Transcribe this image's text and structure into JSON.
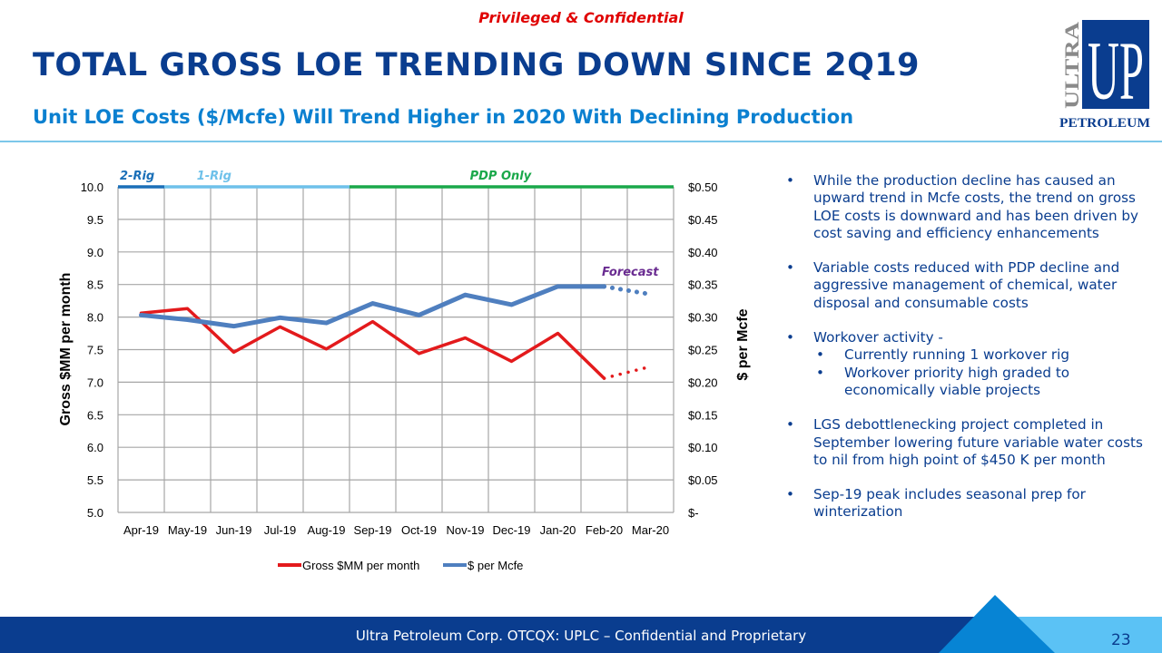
{
  "header": {
    "confidential_label": "Privileged & Confidential",
    "title": "TOTAL GROSS LOE TRENDING DOWN SINCE 2Q19",
    "subtitle": "Unit LOE Costs ($/Mcfe) Will Trend Higher in 2020 With Declining Production"
  },
  "logo": {
    "side_text": "ULTRA",
    "main_text": "UP",
    "bottom_text": "PETROLEUM",
    "colors": {
      "navy": "#0a3d8f",
      "gray": "#8a8a8a"
    }
  },
  "chart_data": {
    "type": "line",
    "categories": [
      "Apr-19",
      "May-19",
      "Jun-19",
      "Jul-19",
      "Aug-19",
      "Sep-19",
      "Oct-19",
      "Nov-19",
      "Dec-19",
      "Jan-20",
      "Feb-20",
      "Mar-20"
    ],
    "series": [
      {
        "name": "Gross $MM per month",
        "axis": "left",
        "color": "#e31a1c",
        "values": [
          8.06,
          8.13,
          7.46,
          7.85,
          7.51,
          7.93,
          7.44,
          7.68,
          7.32,
          7.75,
          7.06,
          null
        ],
        "forecast": {
          "from": "Feb-20",
          "to": "Mar-20",
          "values": [
            7.06,
            7.24
          ]
        }
      },
      {
        "name": "$ per Mcfe",
        "axis": "right",
        "color": "#4f7fbf",
        "values": [
          0.303,
          0.296,
          0.286,
          0.299,
          0.291,
          0.321,
          0.303,
          0.334,
          0.319,
          0.347,
          0.347,
          null
        ],
        "forecast": {
          "from": "Feb-20",
          "to": "Mar-20",
          "values": [
            0.347,
            0.335
          ]
        }
      }
    ],
    "ylabel": "Gross $MM per month",
    "y2label": "$ per Mcfe",
    "ylim": [
      5.0,
      10.0
    ],
    "y2lim": [
      0,
      0.5
    ],
    "yticks": [
      "10.0",
      "9.5",
      "9.0",
      "8.5",
      "8.0",
      "7.5",
      "7.0",
      "6.5",
      "6.0",
      "5.5",
      "5.0"
    ],
    "y2ticks": [
      "$0.50",
      "$0.45",
      "$0.40",
      "$0.35",
      "$0.30",
      "$0.25",
      "$0.20",
      "$0.15",
      "$0.10",
      "$0.05",
      "$-"
    ],
    "grid": true,
    "legend": "bottom",
    "phases": [
      {
        "label": "2-Rig",
        "start": "Apr-19",
        "end": "Apr-19",
        "color": "#1a6fb8"
      },
      {
        "label": "1-Rig",
        "start": "May-19",
        "end": "Aug-19",
        "color": "#6ec1ea"
      },
      {
        "label": "PDP Only",
        "start": "Sep-19",
        "end": "Mar-20",
        "color": "#1aa84a"
      }
    ],
    "annotations": [
      {
        "text": "Forecast",
        "color": "#6a2c91",
        "near": "Feb-20"
      }
    ]
  },
  "bullets": [
    {
      "text": "While the production decline has caused an upward trend in Mcfe costs, the trend on gross LOE costs is downward and has been driven by cost saving and efficiency enhancements"
    },
    {
      "text": "Variable costs reduced with PDP decline and aggressive management of chemical, water disposal and consumable costs"
    },
    {
      "text": "Workover activity -",
      "sub": [
        "Currently running 1 workover rig",
        "Workover priority high graded to economically viable projects"
      ]
    },
    {
      "text": "LGS debottlenecking project completed in September lowering future variable water costs to nil from high point of $450 K per month"
    },
    {
      "text": "Sep-19 peak includes seasonal prep  for winterization"
    }
  ],
  "bullet_glyph": "•",
  "footer": {
    "text": "Ultra Petroleum Corp. OTCQX: UPLC – Confidential and Proprietary",
    "page_number": "23"
  }
}
